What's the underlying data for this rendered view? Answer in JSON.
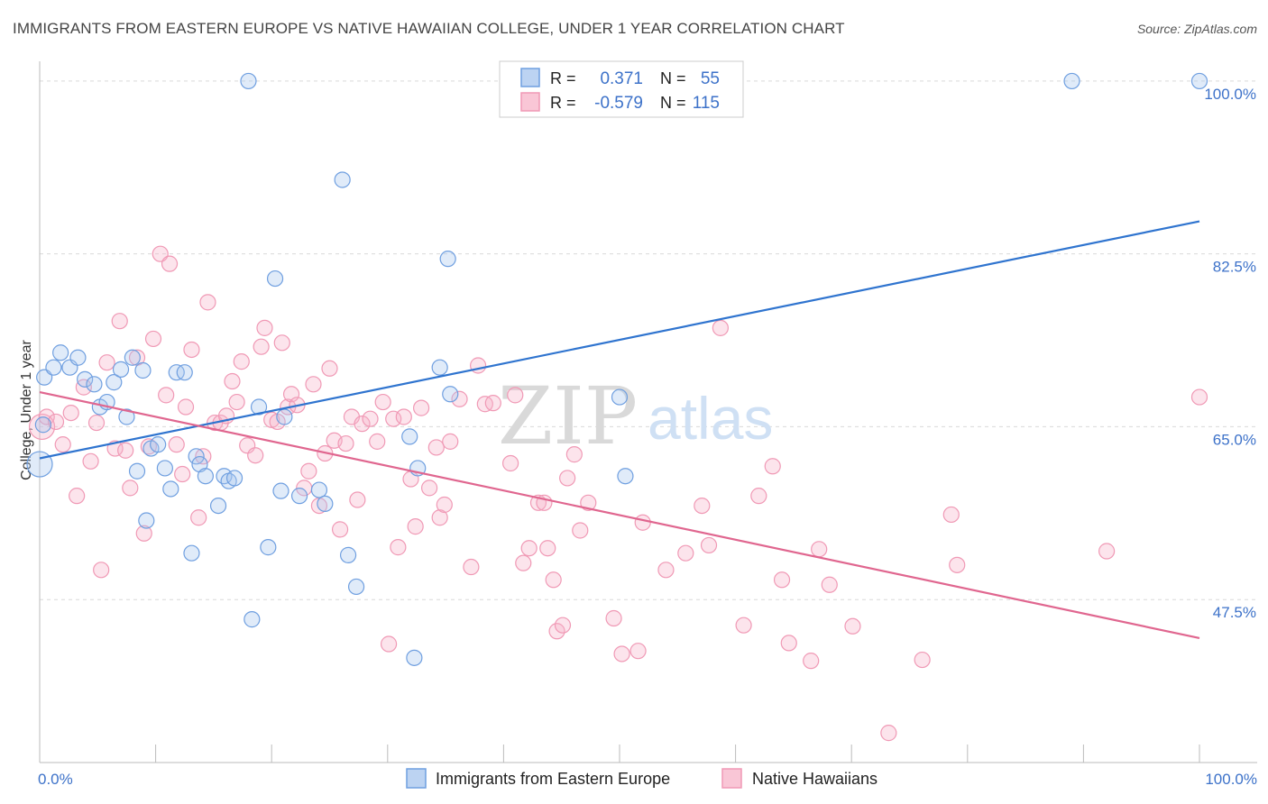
{
  "title": "IMMIGRANTS FROM EASTERN EUROPE VS NATIVE HAWAIIAN COLLEGE, UNDER 1 YEAR CORRELATION CHART",
  "source": "Source: ZipAtlas.com",
  "watermark": {
    "zip": "ZIP",
    "atlas": "atlas"
  },
  "stats": [
    {
      "r_label": "R =",
      "r_value": "0.371",
      "n_label": "N =",
      "n_value": "55"
    },
    {
      "r_label": "R =",
      "r_value": "-0.579",
      "n_label": "N =",
      "n_value": "115"
    }
  ],
  "chart_data": {
    "type": "scatter",
    "title": "IMMIGRANTS FROM EASTERN EUROPE VS NATIVE HAWAIIAN COLLEGE, UNDER 1 YEAR CORRELATION CHART",
    "xlabel": "",
    "ylabel": "College, Under 1 year",
    "xlim": [
      0,
      100
    ],
    "ylim": [
      31,
      102
    ],
    "x_tick_labels": [
      "0.0%",
      "100.0%"
    ],
    "y_ticks": [
      {
        "value": 47.5,
        "label": "47.5%"
      },
      {
        "value": 65.0,
        "label": "65.0%"
      },
      {
        "value": 82.5,
        "label": "82.5%"
      },
      {
        "value": 100.0,
        "label": "100.0%"
      }
    ],
    "series": [
      {
        "name": "Immigrants from Eastern Europe",
        "color": "#6f9fe0",
        "line_color": "#2f74cf",
        "trend": {
          "x0": 0,
          "y0": 61.8,
          "x1": 100,
          "y1": 85.8
        },
        "points": [
          [
            0.0,
            61.2
          ],
          [
            0.4,
            70.0
          ],
          [
            1.2,
            71.0
          ],
          [
            1.8,
            72.5
          ],
          [
            2.6,
            71.0
          ],
          [
            3.3,
            72.0
          ],
          [
            3.9,
            69.8
          ],
          [
            4.7,
            69.3
          ],
          [
            5.2,
            67.0
          ],
          [
            5.8,
            67.5
          ],
          [
            6.4,
            69.5
          ],
          [
            7.0,
            70.8
          ],
          [
            7.5,
            66.0
          ],
          [
            8.0,
            72.0
          ],
          [
            8.4,
            60.5
          ],
          [
            8.9,
            70.7
          ],
          [
            9.2,
            55.5
          ],
          [
            9.6,
            62.8
          ],
          [
            10.2,
            63.2
          ],
          [
            10.8,
            60.8
          ],
          [
            11.3,
            58.7
          ],
          [
            11.8,
            70.5
          ],
          [
            12.5,
            70.5
          ],
          [
            13.1,
            52.2
          ],
          [
            13.5,
            62.0
          ],
          [
            13.8,
            61.2
          ],
          [
            14.3,
            60.0
          ],
          [
            15.4,
            57.0
          ],
          [
            15.9,
            60.0
          ],
          [
            16.3,
            59.5
          ],
          [
            16.8,
            59.8
          ],
          [
            18.0,
            100.0
          ],
          [
            18.3,
            45.5
          ],
          [
            18.9,
            67.0
          ],
          [
            19.7,
            52.8
          ],
          [
            20.3,
            80.0
          ],
          [
            20.8,
            58.5
          ],
          [
            21.1,
            66.0
          ],
          [
            22.4,
            58.0
          ],
          [
            24.1,
            58.6
          ],
          [
            24.6,
            57.2
          ],
          [
            26.1,
            90.0
          ],
          [
            26.6,
            52.0
          ],
          [
            27.3,
            48.8
          ],
          [
            31.9,
            64.0
          ],
          [
            32.3,
            41.6
          ],
          [
            32.6,
            60.8
          ],
          [
            34.5,
            71.0
          ],
          [
            35.2,
            82.0
          ],
          [
            35.4,
            68.3
          ],
          [
            50.0,
            68.0
          ],
          [
            50.5,
            60.0
          ],
          [
            89.0,
            100.0
          ],
          [
            100.0,
            100.0
          ],
          [
            0.3,
            65.2
          ]
        ]
      },
      {
        "name": "Native Hawaiians",
        "color": "#f099b5",
        "line_color": "#e0668f",
        "trend": {
          "x0": 0,
          "y0": 68.5,
          "x1": 100,
          "y1": 43.6
        },
        "points": [
          [
            0.2,
            65.0
          ],
          [
            0.6,
            66.0
          ],
          [
            1.4,
            65.5
          ],
          [
            2.0,
            63.2
          ],
          [
            2.7,
            66.4
          ],
          [
            3.2,
            58.0
          ],
          [
            3.8,
            69.0
          ],
          [
            4.4,
            61.5
          ],
          [
            4.9,
            65.4
          ],
          [
            5.3,
            50.5
          ],
          [
            5.8,
            71.5
          ],
          [
            6.5,
            62.8
          ],
          [
            6.9,
            75.7
          ],
          [
            7.4,
            62.6
          ],
          [
            7.8,
            58.8
          ],
          [
            8.4,
            72.0
          ],
          [
            9.0,
            54.2
          ],
          [
            9.4,
            63.0
          ],
          [
            9.8,
            73.9
          ],
          [
            10.4,
            82.5
          ],
          [
            10.9,
            68.2
          ],
          [
            11.2,
            81.5
          ],
          [
            11.8,
            63.2
          ],
          [
            12.3,
            60.2
          ],
          [
            12.6,
            67.0
          ],
          [
            13.1,
            72.8
          ],
          [
            13.7,
            55.8
          ],
          [
            14.1,
            62.0
          ],
          [
            14.5,
            77.6
          ],
          [
            15.1,
            65.4
          ],
          [
            15.6,
            65.4
          ],
          [
            16.1,
            66.1
          ],
          [
            16.6,
            69.6
          ],
          [
            17.0,
            67.5
          ],
          [
            17.4,
            71.6
          ],
          [
            17.9,
            63.1
          ],
          [
            18.6,
            62.1
          ],
          [
            19.1,
            73.1
          ],
          [
            19.4,
            75.0
          ],
          [
            20.0,
            65.7
          ],
          [
            20.5,
            65.5
          ],
          [
            20.9,
            73.5
          ],
          [
            21.4,
            67.0
          ],
          [
            21.7,
            68.3
          ],
          [
            22.2,
            67.2
          ],
          [
            22.8,
            58.8
          ],
          [
            23.2,
            60.5
          ],
          [
            23.6,
            69.3
          ],
          [
            24.1,
            57.0
          ],
          [
            24.6,
            62.3
          ],
          [
            25.0,
            70.9
          ],
          [
            25.4,
            63.6
          ],
          [
            25.9,
            54.6
          ],
          [
            26.4,
            63.3
          ],
          [
            26.9,
            66.0
          ],
          [
            27.4,
            57.6
          ],
          [
            27.8,
            65.3
          ],
          [
            28.5,
            65.8
          ],
          [
            29.1,
            63.5
          ],
          [
            29.6,
            67.5
          ],
          [
            30.1,
            43.0
          ],
          [
            30.5,
            65.8
          ],
          [
            30.9,
            52.8
          ],
          [
            31.4,
            66.0
          ],
          [
            32.0,
            59.7
          ],
          [
            32.4,
            54.9
          ],
          [
            32.9,
            66.9
          ],
          [
            33.6,
            58.8
          ],
          [
            34.2,
            62.9
          ],
          [
            34.5,
            55.8
          ],
          [
            34.9,
            57.1
          ],
          [
            35.4,
            63.5
          ],
          [
            36.2,
            67.8
          ],
          [
            37.2,
            50.8
          ],
          [
            37.8,
            71.2
          ],
          [
            38.4,
            67.3
          ],
          [
            39.1,
            67.4
          ],
          [
            40.6,
            61.3
          ],
          [
            41.0,
            68.2
          ],
          [
            41.7,
            51.2
          ],
          [
            42.2,
            52.7
          ],
          [
            43.0,
            57.3
          ],
          [
            43.5,
            57.3
          ],
          [
            43.8,
            52.7
          ],
          [
            44.3,
            49.5
          ],
          [
            44.6,
            44.3
          ],
          [
            45.1,
            44.9
          ],
          [
            45.5,
            59.8
          ],
          [
            46.1,
            62.2
          ],
          [
            46.6,
            54.5
          ],
          [
            47.3,
            57.3
          ],
          [
            49.5,
            45.6
          ],
          [
            50.2,
            42.0
          ],
          [
            51.6,
            42.3
          ],
          [
            52.0,
            55.3
          ],
          [
            54.0,
            50.5
          ],
          [
            55.7,
            52.2
          ],
          [
            57.1,
            57.0
          ],
          [
            57.7,
            53.0
          ],
          [
            58.7,
            75.0
          ],
          [
            60.7,
            44.9
          ],
          [
            62.0,
            58.0
          ],
          [
            63.2,
            61.0
          ],
          [
            64.0,
            49.5
          ],
          [
            64.6,
            43.1
          ],
          [
            66.5,
            41.3
          ],
          [
            67.2,
            52.6
          ],
          [
            68.1,
            49.0
          ],
          [
            70.1,
            44.8
          ],
          [
            73.2,
            34.0
          ],
          [
            76.1,
            41.4
          ],
          [
            78.6,
            56.1
          ],
          [
            79.1,
            51.0
          ],
          [
            92.0,
            52.4
          ],
          [
            100.0,
            68.0
          ]
        ]
      }
    ],
    "legend": [
      "Immigrants from Eastern Europe",
      "Native Hawaiians"
    ]
  }
}
